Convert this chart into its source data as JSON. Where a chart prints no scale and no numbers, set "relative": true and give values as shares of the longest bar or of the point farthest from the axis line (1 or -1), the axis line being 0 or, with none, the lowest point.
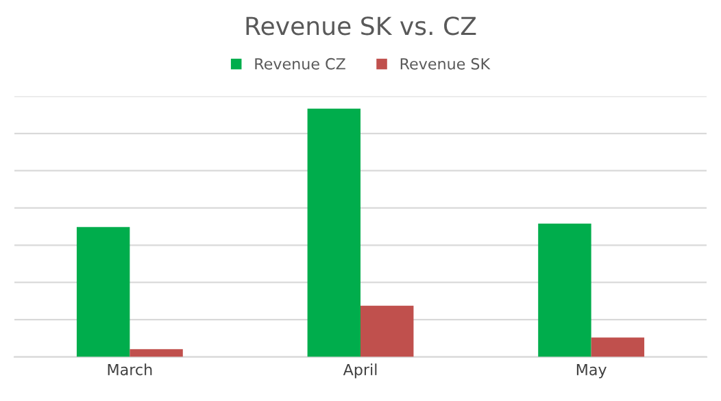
{
  "chart_data": {
    "type": "bar",
    "title": "Revenue SK vs. CZ",
    "categories": [
      "March",
      "April",
      "May"
    ],
    "series": [
      {
        "name": "Revenue CZ",
        "color": "#00ad4c",
        "values": [
          0.523,
          1,
          0.537
        ]
      },
      {
        "name": "Revenue SK",
        "color": "#c0504d",
        "values": [
          0.031,
          0.206,
          0.078
        ]
      }
    ],
    "relative": true,
    "grid": "y",
    "legend": "top"
  }
}
